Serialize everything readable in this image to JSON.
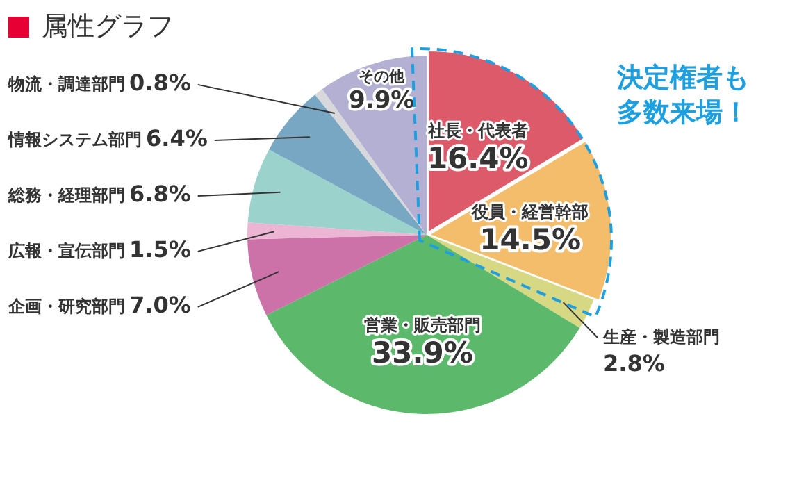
{
  "chart_data": {
    "type": "pie",
    "title": "属性グラフ",
    "categories": [
      "社長・代表者",
      "役員・経営幹部",
      "生産・製造部門",
      "営業・販売部門",
      "企画・研究部門",
      "広報・宣伝部門",
      "総務・経理部門",
      "情報システム部門",
      "物流・調達部門",
      "その他"
    ],
    "values": [
      16.4,
      14.5,
      2.8,
      33.9,
      7.0,
      1.5,
      6.8,
      6.4,
      0.8,
      9.9
    ],
    "value_labels": [
      "16.4%",
      "14.5%",
      "2.8%",
      "33.9%",
      "7.0%",
      "1.5%",
      "6.8%",
      "6.4%",
      "0.8%",
      "9.9%"
    ],
    "colors": [
      "#dc5a6a",
      "#f4bd6c",
      "#d6d883",
      "#5cb86a",
      "#cc72a8",
      "#ebb5d3",
      "#9bd3cc",
      "#78a7c3",
      "#d8d8dc",
      "#b4b0d4"
    ],
    "annotations": [
      "決定権者も多数来場！"
    ],
    "legend": false
  }
}
